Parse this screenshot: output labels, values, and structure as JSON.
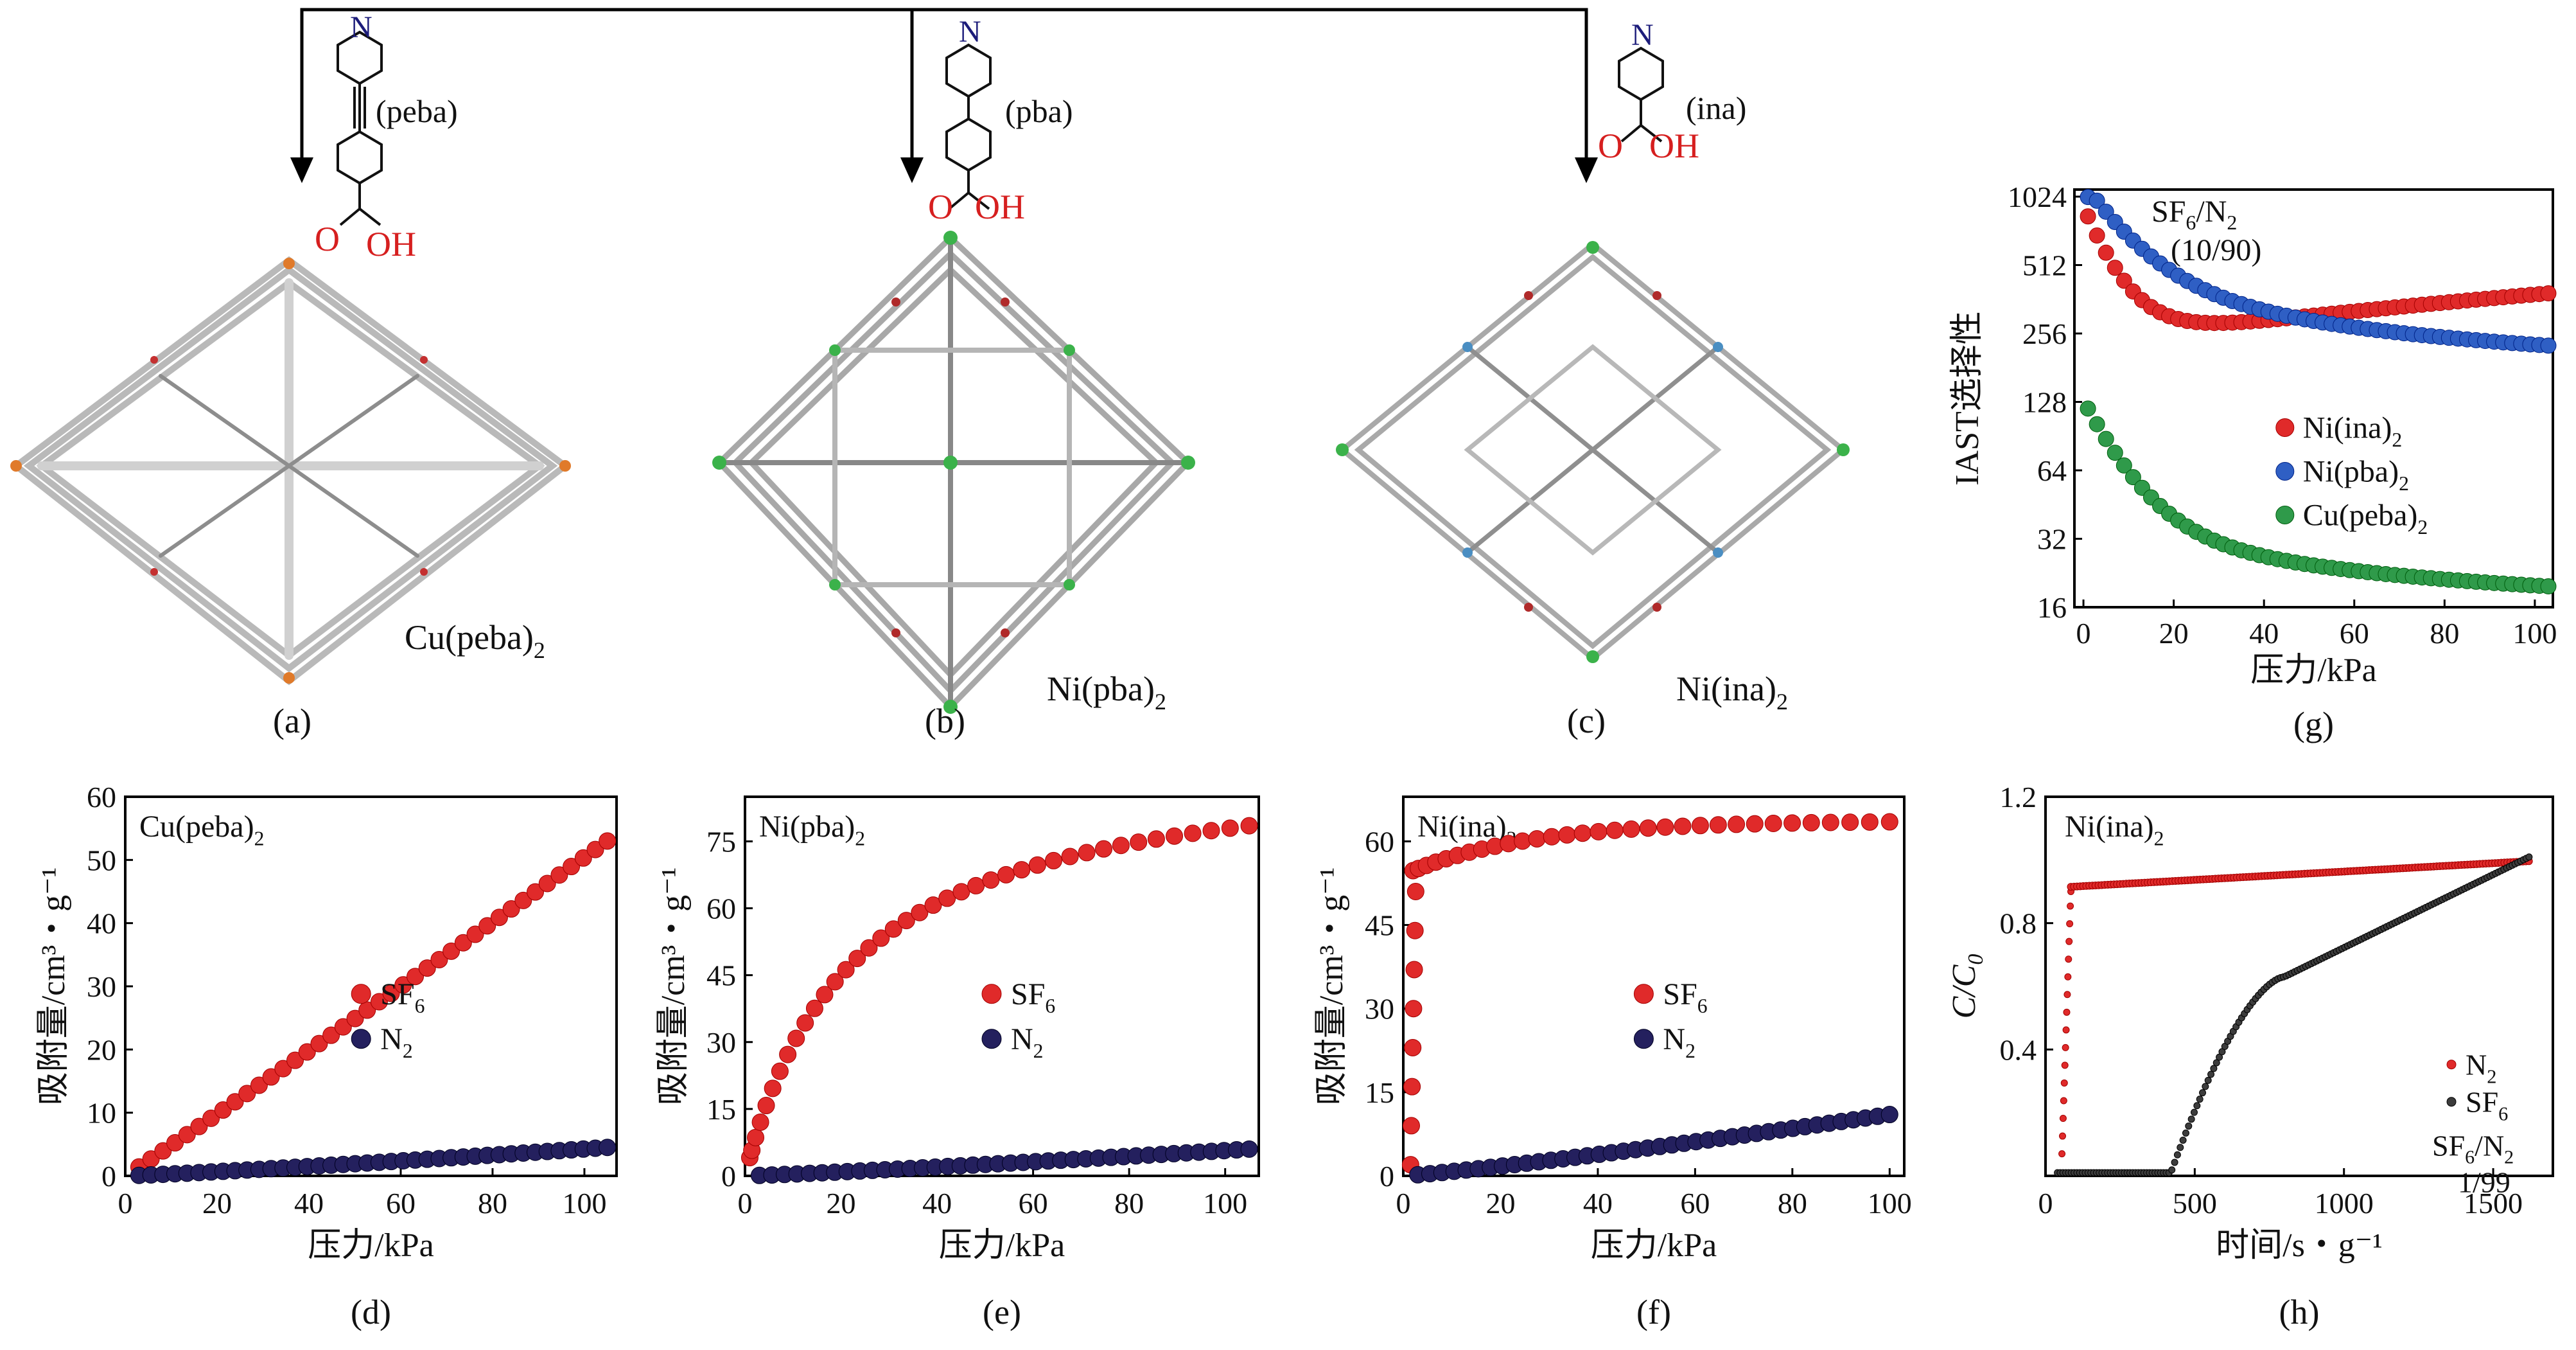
{
  "colors": {
    "red": "#e02a2a",
    "blue": "#2f5fc4",
    "green": "#2f9a4a",
    "navy": "#24205e",
    "gray": "#3c3c3c",
    "axis": "#000000"
  },
  "top": {
    "ligands": [
      {
        "name": "(peba)",
        "N": "N",
        "acid": "O",
        "oh": "OH"
      },
      {
        "name": "(pba)",
        "N": "N",
        "acid": "O",
        "oh": "OH"
      },
      {
        "name": "(ina)",
        "N": "N",
        "acid": "O",
        "oh": "OH"
      }
    ],
    "frameworks": [
      {
        "label_main": "Cu(peba)",
        "label_sub": "2",
        "panel": "(a)"
      },
      {
        "label_main": "Ni(pba)",
        "label_sub": "2",
        "panel": "(b)"
      },
      {
        "label_main": "Ni(ina)",
        "label_sub": "2",
        "panel": "(c)"
      }
    ]
  },
  "chart_data": [
    {
      "id": "g",
      "type": "scatter",
      "panel": "(g)",
      "title": "SF6/N2 (10/90)",
      "title_parts": {
        "a": "SF",
        "b": "6",
        "c": "/N",
        "d": "2",
        "ratio": "(10/90)"
      },
      "xlabel": "压力/kPa",
      "ylabel": "IAST选择性",
      "yscale": "log2",
      "xlim": [
        -2,
        104
      ],
      "ylim": [
        16,
        1100
      ],
      "xticks": [
        0,
        20,
        40,
        60,
        80,
        100
      ],
      "yticks": [
        16,
        32,
        64,
        128,
        256,
        512,
        1024
      ],
      "series": [
        {
          "name": "Ni(ina)2",
          "label_main": "Ni(ina)",
          "label_sub": "2",
          "color": "#e02a2a",
          "model": {
            "kind": "ina"
          }
        },
        {
          "name": "Ni(pba)2",
          "label_main": "Ni(pba)",
          "label_sub": "2",
          "color": "#2f5fc4",
          "model": {
            "kind": "pba"
          }
        },
        {
          "name": "Cu(peba)2",
          "label_main": "Cu(peba)",
          "label_sub": "2",
          "color": "#2f9a4a",
          "model": {
            "kind": "peba"
          }
        }
      ]
    },
    {
      "id": "d",
      "type": "scatter",
      "panel": "(d)",
      "title": "Cu(peba)2",
      "title_main": "Cu(peba)",
      "title_sub": "2",
      "xlabel": "压力/kPa",
      "ylabel": "吸附量/cm³・g⁻¹",
      "xlim": [
        0,
        107
      ],
      "ylim": [
        0,
        60
      ],
      "xticks": [
        0,
        20,
        40,
        60,
        80,
        100
      ],
      "yticks": [
        0,
        10,
        20,
        30,
        40,
        50,
        60
      ],
      "series": [
        {
          "name": "SF6",
          "label_main": "SF",
          "label_sub": "6",
          "color": "#e02a2a",
          "x_end": 105,
          "y_end": 53,
          "shape": "linear",
          "sat": 0
        },
        {
          "name": "N2",
          "label_main": "N",
          "label_sub": "2",
          "color": "#24205e",
          "x_end": 105,
          "y_end": 4.5,
          "shape": "linear",
          "sat": 0
        }
      ]
    },
    {
      "id": "e",
      "type": "scatter",
      "panel": "(e)",
      "title": "Ni(pba)2",
      "title_main": "Ni(pba)",
      "title_sub": "2",
      "xlabel": "压力/kPa",
      "ylabel": "吸附量/cm³・g⁻¹",
      "xlim": [
        0,
        107
      ],
      "ylim": [
        0,
        85
      ],
      "xticks": [
        0,
        20,
        40,
        60,
        80,
        100
      ],
      "yticks": [
        15,
        30,
        45,
        60,
        75
      ],
      "series": [
        {
          "name": "SF6",
          "label_main": "SF",
          "label_sub": "6",
          "color": "#e02a2a",
          "x_end": 105,
          "y_end": 78.5,
          "shape": "langmuir",
          "sat": 95,
          "b": 0.045
        },
        {
          "name": "N2",
          "label_main": "N",
          "label_sub": "2",
          "color": "#24205e",
          "x_end": 105,
          "y_end": 6,
          "shape": "linear",
          "sat": 0
        }
      ]
    },
    {
      "id": "f",
      "type": "scatter",
      "panel": "(f)",
      "title": "Ni(ina)2",
      "title_main": "Ni(ina)",
      "title_sub": "2",
      "xlabel": "压力/kPa",
      "ylabel": "吸附量/cm³・g⁻¹",
      "xlim": [
        0,
        103
      ],
      "ylim": [
        0,
        68
      ],
      "xticks": [
        0,
        20,
        40,
        60,
        80,
        100
      ],
      "yticks": [
        15,
        30,
        45,
        60
      ],
      "series": [
        {
          "name": "SF6",
          "label_main": "SF",
          "label_sub": "6",
          "color": "#e02a2a",
          "x_end": 100,
          "y_end": 63.5,
          "shape": "steep",
          "sat": 0
        },
        {
          "name": "N2",
          "label_main": "N",
          "label_sub": "2",
          "color": "#24205e",
          "x_end": 100,
          "y_end": 11,
          "shape": "linear",
          "sat": 0
        }
      ]
    },
    {
      "id": "h",
      "type": "scatter",
      "panel": "(h)",
      "title": "Ni(ina)2",
      "title_main": "Ni(ina)",
      "title_sub": "2",
      "xlabel": "时间/s・g⁻¹",
      "ylabel": "C/C0",
      "ylabel_main": "C/C",
      "ylabel_sub": "0",
      "xlim": [
        0,
        1700
      ],
      "ylim": [
        0,
        1.2
      ],
      "xticks": [
        0,
        500,
        1000,
        1500
      ],
      "yticks": [
        0.4,
        0.8,
        1.2
      ],
      "ytick_labels": [
        "0.4",
        "0.8",
        "1.2"
      ],
      "series": [
        {
          "name": "N2",
          "label_main": "N",
          "label_sub": "2",
          "color": "#e02a2a"
        },
        {
          "name": "SF6",
          "label_main": "SF",
          "label_sub": "6",
          "color": "#3c3c3c"
        }
      ],
      "feed": {
        "a": "SF",
        "b": "6",
        "c": "/N",
        "d": "2",
        "ratio": "1/99"
      }
    }
  ]
}
